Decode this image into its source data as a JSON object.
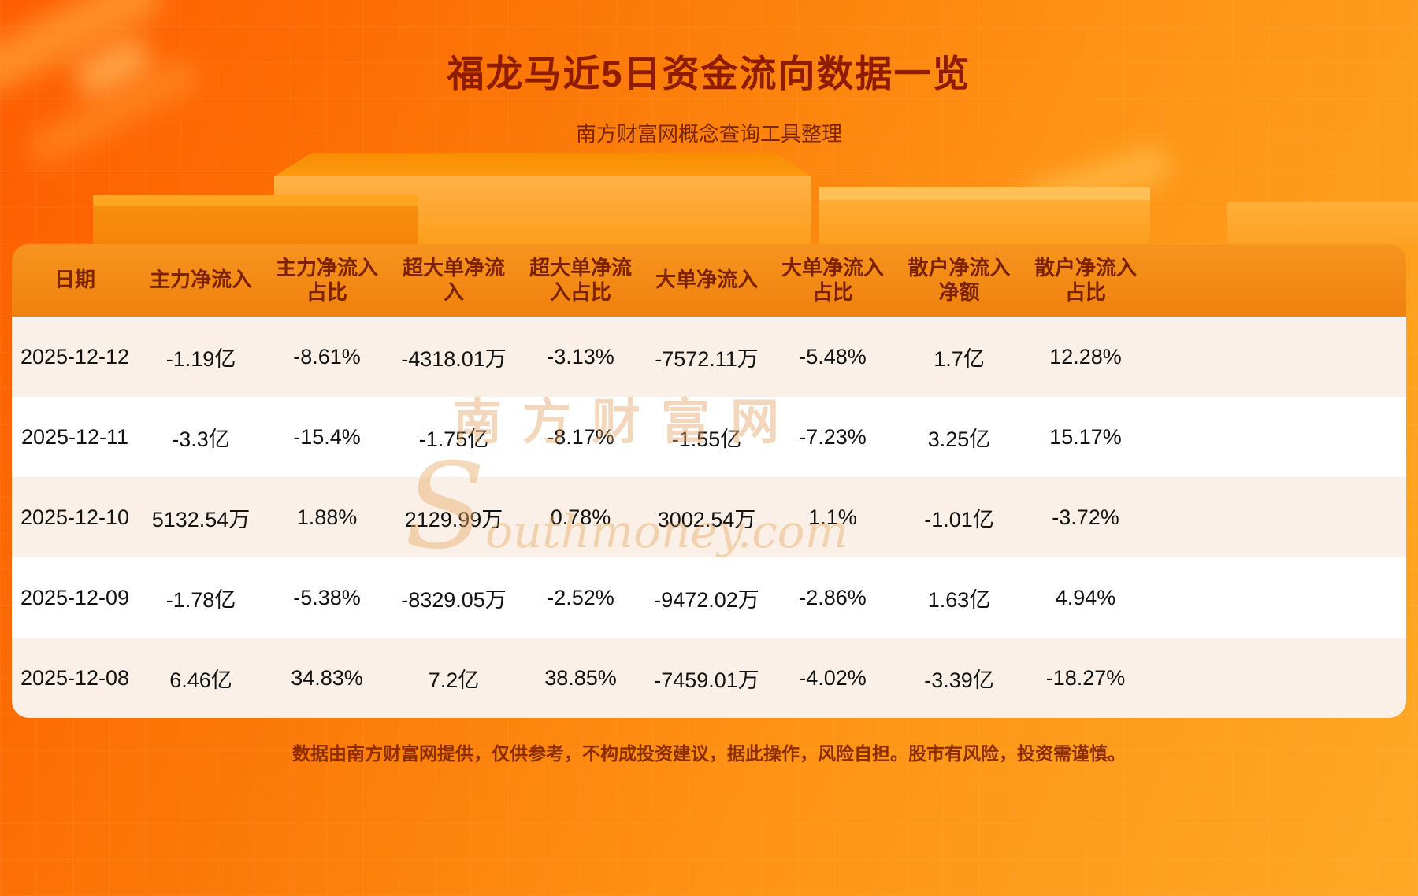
{
  "page": {
    "title": "福龙马近5日资金流向数据一览",
    "subtitle": "南方财富网概念查询工具整理",
    "watermark_cn": "南方财富网",
    "watermark_en": "Southmoney.com",
    "footer": "数据由南方财富网提供，仅供参考，不构成投资建议，据此操作，风险自担。股市有风险，投资需谨慎。"
  },
  "chart_data": {
    "type": "table",
    "title": "福龙马近5日资金流向数据一览",
    "columns": [
      "日期",
      "主力净流入",
      "主力净流入占比",
      "超大单净流入",
      "超大单净流入占比",
      "大单净流入",
      "大单净流入占比",
      "散户净流入净额",
      "散户净流入占比"
    ],
    "rows": [
      [
        "2025-12-12",
        "-1.19亿",
        "-8.61%",
        "-4318.01万",
        "-3.13%",
        "-7572.11万",
        "-5.48%",
        "1.7亿",
        "12.28%"
      ],
      [
        "2025-12-11",
        "-3.3亿",
        "-15.4%",
        "-1.75亿",
        "-8.17%",
        "-1.55亿",
        "-7.23%",
        "3.25亿",
        "15.17%"
      ],
      [
        "2025-12-10",
        "5132.54万",
        "1.88%",
        "2129.99万",
        "0.78%",
        "3002.54万",
        "1.1%",
        "-1.01亿",
        "-3.72%"
      ],
      [
        "2025-12-09",
        "-1.78亿",
        "-5.38%",
        "-8329.05万",
        "-2.52%",
        "-9472.02万",
        "-2.86%",
        "1.63亿",
        "4.94%"
      ],
      [
        "2025-12-08",
        "6.46亿",
        "34.83%",
        "7.2亿",
        "38.85%",
        "-7459.01万",
        "-4.02%",
        "-3.39亿",
        "-18.27%"
      ]
    ]
  },
  "colors": {
    "background_top": "#ff5c00",
    "background_bottom": "#ffa826",
    "title_text": "#8f1b00",
    "header_bg": "#f3890f",
    "header_text": "#7c2200",
    "row_stripe_bg": "#faf0e7",
    "row_plain_bg": "#ffffff",
    "cell_text": "#121212",
    "footer_text": "#8c2e00",
    "watermark": "#e1a05f"
  }
}
